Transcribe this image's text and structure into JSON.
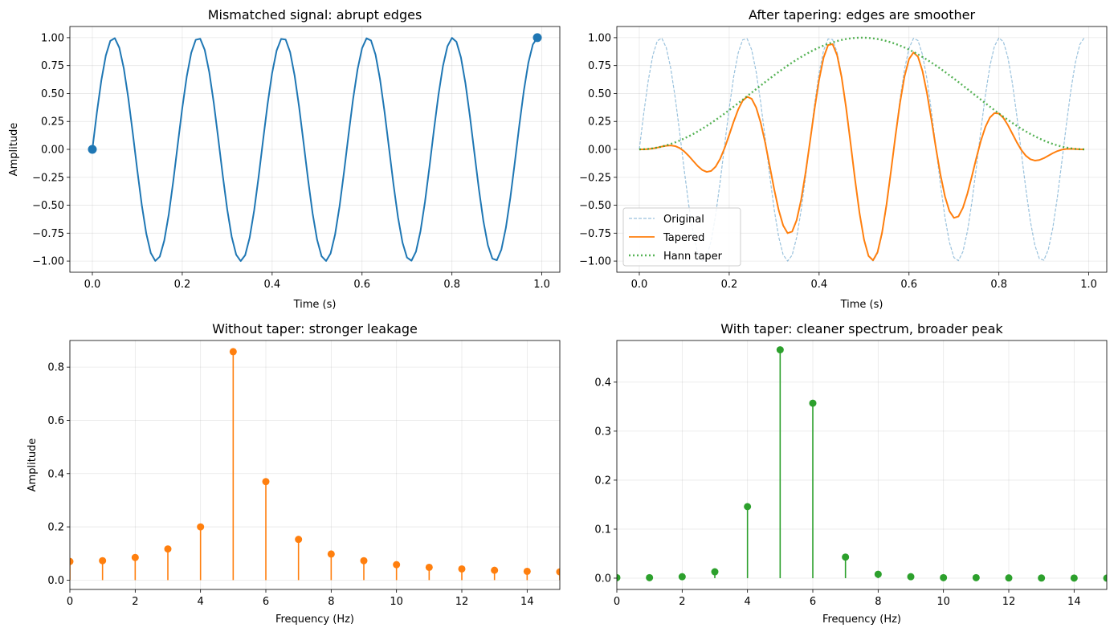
{
  "chart_data": [
    {
      "id": "p1",
      "type": "line",
      "title": "Mismatched signal: abrupt edges",
      "xlabel": "Time (s)",
      "ylabel": "Amplitude",
      "xlim": [
        -0.05,
        1.04
      ],
      "ylim": [
        -1.1,
        1.1
      ],
      "xticks": [
        0.0,
        0.2,
        0.4,
        0.6,
        0.8,
        1.0
      ],
      "xtick_labels": [
        "0.0",
        "0.2",
        "0.4",
        "0.6",
        "0.8",
        "1.0"
      ],
      "yticks": [
        -1.0,
        -0.75,
        -0.5,
        -0.25,
        0.0,
        0.25,
        0.5,
        0.75,
        1.0
      ],
      "ytick_labels": [
        "−1.00",
        "−0.75",
        "−0.50",
        "−0.25",
        "0.00",
        "0.25",
        "0.50",
        "0.75",
        "1.00"
      ],
      "grid": true,
      "series": [
        {
          "name": "Signal",
          "kind": "sine",
          "frequency_hz": 5.3,
          "amplitude": 1.0,
          "x_start": 0.0,
          "x_end": 0.99,
          "samples": 100,
          "color": "#1f77b4"
        }
      ],
      "endpoints": [
        {
          "name": "start",
          "x": 0.0,
          "y": 0.0
        },
        {
          "name": "end",
          "x": 0.99,
          "y": 1.0
        }
      ]
    },
    {
      "id": "p2",
      "type": "line",
      "title": "After tapering: edges are smoother",
      "xlabel": "Time (s)",
      "ylabel": "",
      "xlim": [
        -0.05,
        1.04
      ],
      "ylim": [
        -1.1,
        1.1
      ],
      "xticks": [
        0.0,
        0.2,
        0.4,
        0.6,
        0.8,
        1.0
      ],
      "xtick_labels": [
        "0.0",
        "0.2",
        "0.4",
        "0.6",
        "0.8",
        "1.0"
      ],
      "yticks": [
        -1.0,
        -0.75,
        -0.5,
        -0.25,
        0.0,
        0.25,
        0.5,
        0.75,
        1.0
      ],
      "ytick_labels": [
        "−1.00",
        "−0.75",
        "−0.50",
        "−0.25",
        "0.00",
        "0.25",
        "0.50",
        "0.75",
        "1.00"
      ],
      "grid": true,
      "legend": {
        "location": "lower-left",
        "entries": [
          "Original",
          "Tapered",
          "Hann taper"
        ]
      },
      "series": [
        {
          "name": "Original",
          "kind": "sine",
          "frequency_hz": 5.3,
          "amplitude": 1.0,
          "x_start": 0.0,
          "x_end": 0.99,
          "samples": 100,
          "color": "#1f77b4",
          "style": "dashed"
        },
        {
          "name": "Tapered",
          "kind": "sine_times_hann",
          "frequency_hz": 5.3,
          "amplitude": 1.0,
          "x_start": 0.0,
          "x_end": 0.99,
          "samples": 100,
          "color": "#ff7f0e",
          "style": "solid"
        },
        {
          "name": "Hann taper",
          "kind": "hann",
          "x_start": 0.0,
          "x_end": 0.99,
          "samples": 100,
          "color": "#2ca02c",
          "style": "dotted"
        }
      ]
    },
    {
      "id": "p3",
      "type": "stem",
      "title": "Without taper: stronger leakage",
      "xlabel": "Frequency (Hz)",
      "ylabel": "Amplitude",
      "xlim": [
        0,
        15
      ],
      "ylim": [
        -0.035,
        0.9
      ],
      "xticks": [
        0,
        2,
        4,
        6,
        8,
        10,
        12,
        14
      ],
      "xtick_labels": [
        "0",
        "2",
        "4",
        "6",
        "8",
        "10",
        "12",
        "14"
      ],
      "yticks": [
        0.0,
        0.2,
        0.4,
        0.6,
        0.8
      ],
      "ytick_labels": [
        "0.0",
        "0.2",
        "0.4",
        "0.6",
        "0.8"
      ],
      "grid": true,
      "color": "#ff7f0e",
      "x": [
        0,
        1,
        2,
        3,
        4,
        5,
        6,
        7,
        8,
        9,
        10,
        11,
        12,
        13,
        14,
        15
      ],
      "values": [
        0.07,
        0.073,
        0.085,
        0.117,
        0.2,
        0.858,
        0.37,
        0.153,
        0.098,
        0.073,
        0.058,
        0.048,
        0.042,
        0.037,
        0.033,
        0.031
      ]
    },
    {
      "id": "p4",
      "type": "stem",
      "title": "With taper: cleaner spectrum, broader peak",
      "xlabel": "Frequency (Hz)",
      "ylabel": "",
      "xlim": [
        0,
        15
      ],
      "ylim": [
        -0.023,
        0.485
      ],
      "xticks": [
        0,
        2,
        4,
        6,
        8,
        10,
        12,
        14
      ],
      "xtick_labels": [
        "0",
        "2",
        "4",
        "6",
        "8",
        "10",
        "12",
        "14"
      ],
      "yticks": [
        0.0,
        0.1,
        0.2,
        0.3,
        0.4
      ],
      "ytick_labels": [
        "0.0",
        "0.1",
        "0.2",
        "0.3",
        "0.4"
      ],
      "grid": true,
      "color": "#2ca02c",
      "x": [
        0,
        1,
        2,
        3,
        4,
        5,
        6,
        7,
        8,
        9,
        10,
        11,
        12,
        13,
        14,
        15
      ],
      "values": [
        0.001,
        0.001,
        0.003,
        0.013,
        0.146,
        0.466,
        0.357,
        0.043,
        0.008,
        0.003,
        0.001,
        0.001,
        0.0005,
        0.0003,
        0.0002,
        0.0001
      ]
    }
  ]
}
